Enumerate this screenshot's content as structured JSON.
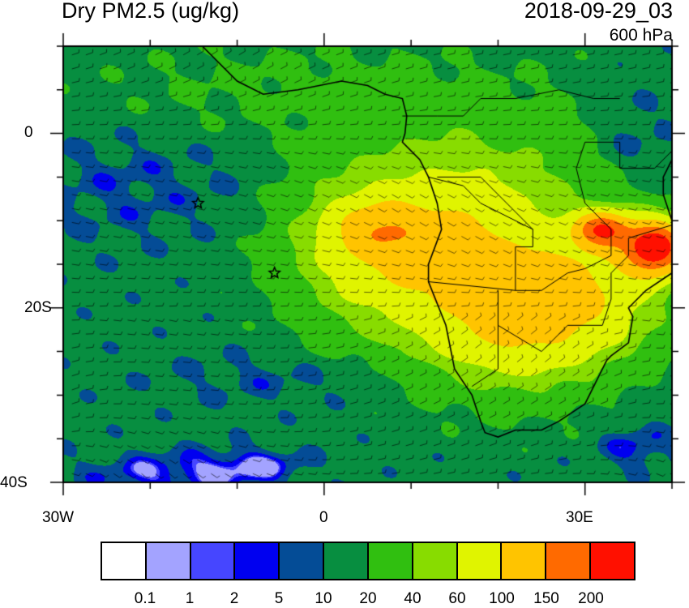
{
  "header": {
    "title": "Dry PM2.5 (ug/kg)",
    "datetime": "2018-09-29_03",
    "level": "600 hPa"
  },
  "axes": {
    "x_labels": [
      "30W",
      "0",
      "30E"
    ],
    "y_labels": [
      "0",
      "20S",
      "40S"
    ],
    "lon_range": [
      -30,
      40
    ],
    "lat_range": [
      -40,
      10
    ]
  },
  "colorbar": {
    "colors": [
      "#ffffff",
      "#a3a3ff",
      "#4646ff",
      "#0000f0",
      "#044c96",
      "#078e40",
      "#30bf10",
      "#88dc00",
      "#e0f400",
      "#ffc400",
      "#ff6a00",
      "#ff1000"
    ],
    "labels": [
      "0.1",
      "1",
      "2",
      "5",
      "10",
      "20",
      "40",
      "60",
      "100",
      "150",
      "200"
    ]
  },
  "markers": [
    {
      "type": "star",
      "lon": -14.5,
      "lat": -8
    },
    {
      "type": "star",
      "lon": -5.7,
      "lat": -16
    }
  ]
}
